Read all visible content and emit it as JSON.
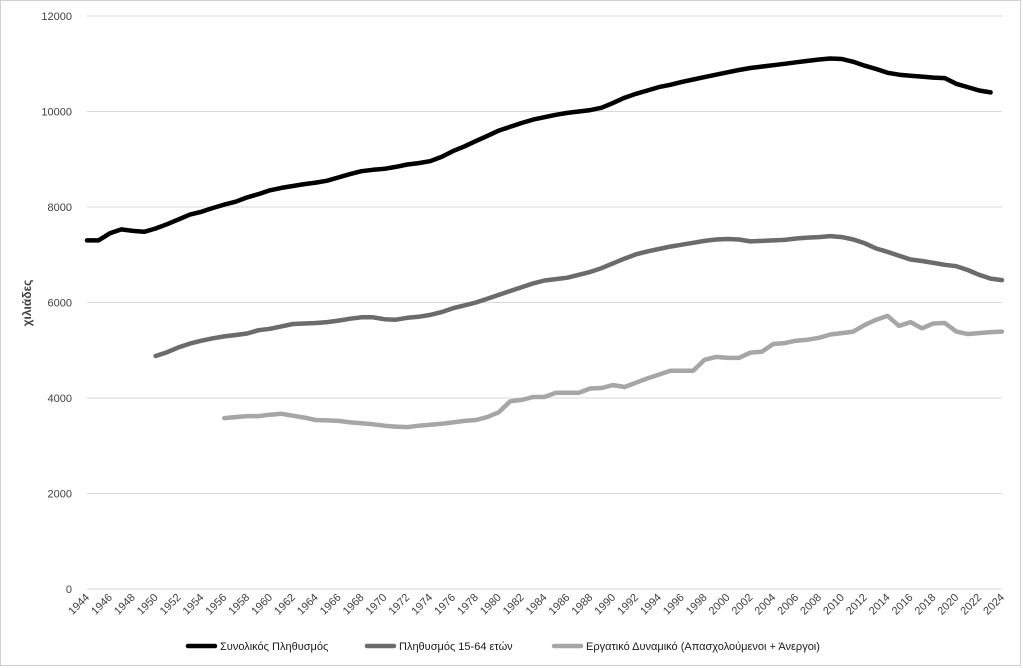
{
  "chart_data": {
    "type": "line",
    "title": "",
    "xlabel": "",
    "ylabel": "χιλιάδες",
    "ylim": [
      0,
      12000
    ],
    "yticks": [
      0,
      2000,
      4000,
      6000,
      8000,
      10000,
      12000
    ],
    "xticks": [
      "1944",
      "1946",
      "1948",
      "1950",
      "1952",
      "1954",
      "1956",
      "1958",
      "1960",
      "1962",
      "1964",
      "1966",
      "1968",
      "1970",
      "1972",
      "1974",
      "1976",
      "1978",
      "1980",
      "1982",
      "1984",
      "1986",
      "1988",
      "1990",
      "1992",
      "1994",
      "1996",
      "1998",
      "2000",
      "2002",
      "2004",
      "2006",
      "2008",
      "2010",
      "2012",
      "2014",
      "2016",
      "2018",
      "2020",
      "2022",
      "2024"
    ],
    "grid": "horizontal",
    "legend_position": "bottom",
    "series": [
      {
        "name": "Συνολικός Πληθυσμός",
        "color": "#000000",
        "x_start": 1944,
        "values": [
          7300,
          7300,
          7450,
          7530,
          7500,
          7480,
          7550,
          7640,
          7740,
          7840,
          7900,
          7980,
          8050,
          8110,
          8200,
          8270,
          8350,
          8400,
          8440,
          8480,
          8510,
          8550,
          8620,
          8690,
          8750,
          8780,
          8800,
          8840,
          8890,
          8920,
          8960,
          9050,
          9170,
          9270,
          9380,
          9490,
          9600,
          9680,
          9760,
          9830,
          9880,
          9930,
          9970,
          10000,
          10030,
          10080,
          10180,
          10290,
          10370,
          10440,
          10510,
          10560,
          10620,
          10670,
          10720,
          10770,
          10820,
          10870,
          10910,
          10940,
          10970,
          11000,
          11030,
          11060,
          11090,
          11110,
          11100,
          11040,
          10960,
          10890,
          10810,
          10770,
          10750,
          10730,
          10710,
          10700,
          10580,
          10510,
          10440,
          10400
        ]
      },
      {
        "name": "Πληθυσμός 15-64 ετών",
        "color": "#6b6b6b",
        "x_start": 1950,
        "values": [
          4880,
          4960,
          5060,
          5140,
          5200,
          5250,
          5290,
          5320,
          5350,
          5420,
          5450,
          5500,
          5550,
          5560,
          5570,
          5590,
          5620,
          5660,
          5690,
          5690,
          5650,
          5640,
          5680,
          5700,
          5740,
          5800,
          5880,
          5940,
          6000,
          6080,
          6160,
          6240,
          6320,
          6400,
          6460,
          6490,
          6520,
          6580,
          6640,
          6720,
          6820,
          6920,
          7010,
          7070,
          7120,
          7170,
          7210,
          7250,
          7290,
          7320,
          7330,
          7320,
          7280,
          7290,
          7300,
          7310,
          7340,
          7360,
          7370,
          7390,
          7370,
          7320,
          7240,
          7130,
          7060,
          6980,
          6900,
          6870,
          6830,
          6790,
          6760,
          6680,
          6580,
          6500,
          6470
        ]
      },
      {
        "name": "Εργατικό Δυναμικό (Απασχολούμενοι + Άνεργοι)",
        "color": "#a6a6a6",
        "x_start": 1956,
        "values": [
          3580,
          3600,
          3620,
          3620,
          3650,
          3670,
          3630,
          3590,
          3540,
          3530,
          3520,
          3490,
          3470,
          3450,
          3420,
          3400,
          3390,
          3420,
          3440,
          3460,
          3490,
          3520,
          3540,
          3600,
          3700,
          3930,
          3960,
          4020,
          4020,
          4110,
          4110,
          4110,
          4200,
          4210,
          4270,
          4230,
          4320,
          4410,
          4490,
          4570,
          4570,
          4570,
          4800,
          4860,
          4840,
          4840,
          4950,
          4970,
          5130,
          5150,
          5200,
          5220,
          5260,
          5330,
          5360,
          5390,
          5530,
          5640,
          5720,
          5510,
          5590,
          5460,
          5560,
          5570,
          5390,
          5340,
          5360,
          5380,
          5390
        ]
      }
    ]
  }
}
